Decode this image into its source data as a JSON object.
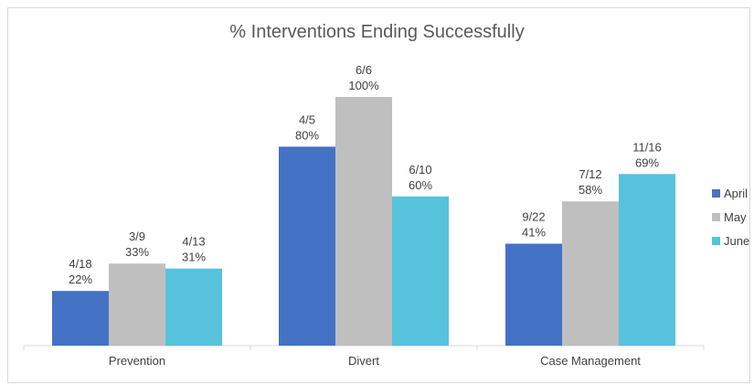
{
  "chart_data": {
    "type": "bar",
    "title": "% Interventions Ending Successfully",
    "xlabel": "",
    "ylabel": "",
    "categories": [
      "Prevention",
      "Divert",
      "Case Management"
    ],
    "ylim": [
      0,
      100
    ],
    "grid": false,
    "legend_position": "right",
    "series": [
      {
        "name": "April",
        "color": "#4472c4",
        "values": [
          22,
          80,
          41
        ],
        "labels": [
          [
            "4/18",
            "22%"
          ],
          [
            "4/5",
            "80%"
          ],
          [
            "9/22",
            "41%"
          ]
        ]
      },
      {
        "name": "May",
        "color": "#bfbfbf",
        "values": [
          33,
          100,
          58
        ],
        "labels": [
          [
            "3/9",
            "33%"
          ],
          [
            "6/6",
            "100%"
          ],
          [
            "7/12",
            "58%"
          ]
        ]
      },
      {
        "name": "June",
        "color": "#56c2dc",
        "values": [
          31,
          60,
          69
        ],
        "labels": [
          [
            "4/13",
            "31%"
          ],
          [
            "6/10",
            "60%"
          ],
          [
            "11/16",
            "69%"
          ]
        ]
      }
    ]
  }
}
